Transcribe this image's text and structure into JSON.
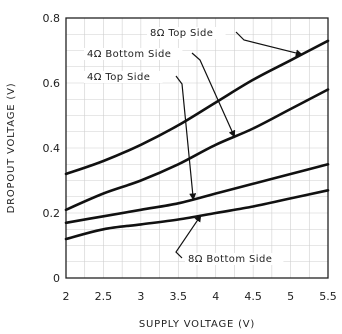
{
  "chart_data": {
    "type": "line",
    "title": "",
    "xlabel": "SUPPLY VOLTAGE (V)",
    "ylabel": "DROPOUT VOLTAGE (V)",
    "xlim": [
      2,
      5.5
    ],
    "ylim": [
      0,
      0.8
    ],
    "x_ticks": [
      "2",
      "2.5",
      "3",
      "3.5",
      "4",
      "4.5",
      "5",
      "5.5"
    ],
    "y_ticks": [
      "0",
      "0.2",
      "0.4",
      "0.6",
      "0.8"
    ],
    "grid": true,
    "x": [
      2.0,
      2.5,
      3.0,
      3.5,
      4.0,
      4.5,
      5.0,
      5.5
    ],
    "series": [
      {
        "name": "8Ω Top Side",
        "values": [
          0.32,
          0.36,
          0.41,
          0.47,
          0.54,
          0.61,
          0.67,
          0.73
        ]
      },
      {
        "name": "4Ω Bottom Side",
        "values": [
          0.21,
          0.26,
          0.3,
          0.35,
          0.41,
          0.46,
          0.52,
          0.58
        ]
      },
      {
        "name": "4Ω Top Side",
        "values": [
          0.17,
          0.19,
          0.21,
          0.23,
          0.26,
          0.29,
          0.32,
          0.35
        ]
      },
      {
        "name": "8Ω Bottom Side",
        "values": [
          0.12,
          0.15,
          0.165,
          0.18,
          0.2,
          0.22,
          0.245,
          0.27
        ]
      }
    ],
    "annotations": [
      {
        "text": "8Ω Top Side",
        "series": 0
      },
      {
        "text": "4Ω Bottom Side",
        "series": 1
      },
      {
        "text": "4Ω Top Side",
        "series": 2
      },
      {
        "text": "8Ω Bottom Side",
        "series": 3
      }
    ]
  }
}
